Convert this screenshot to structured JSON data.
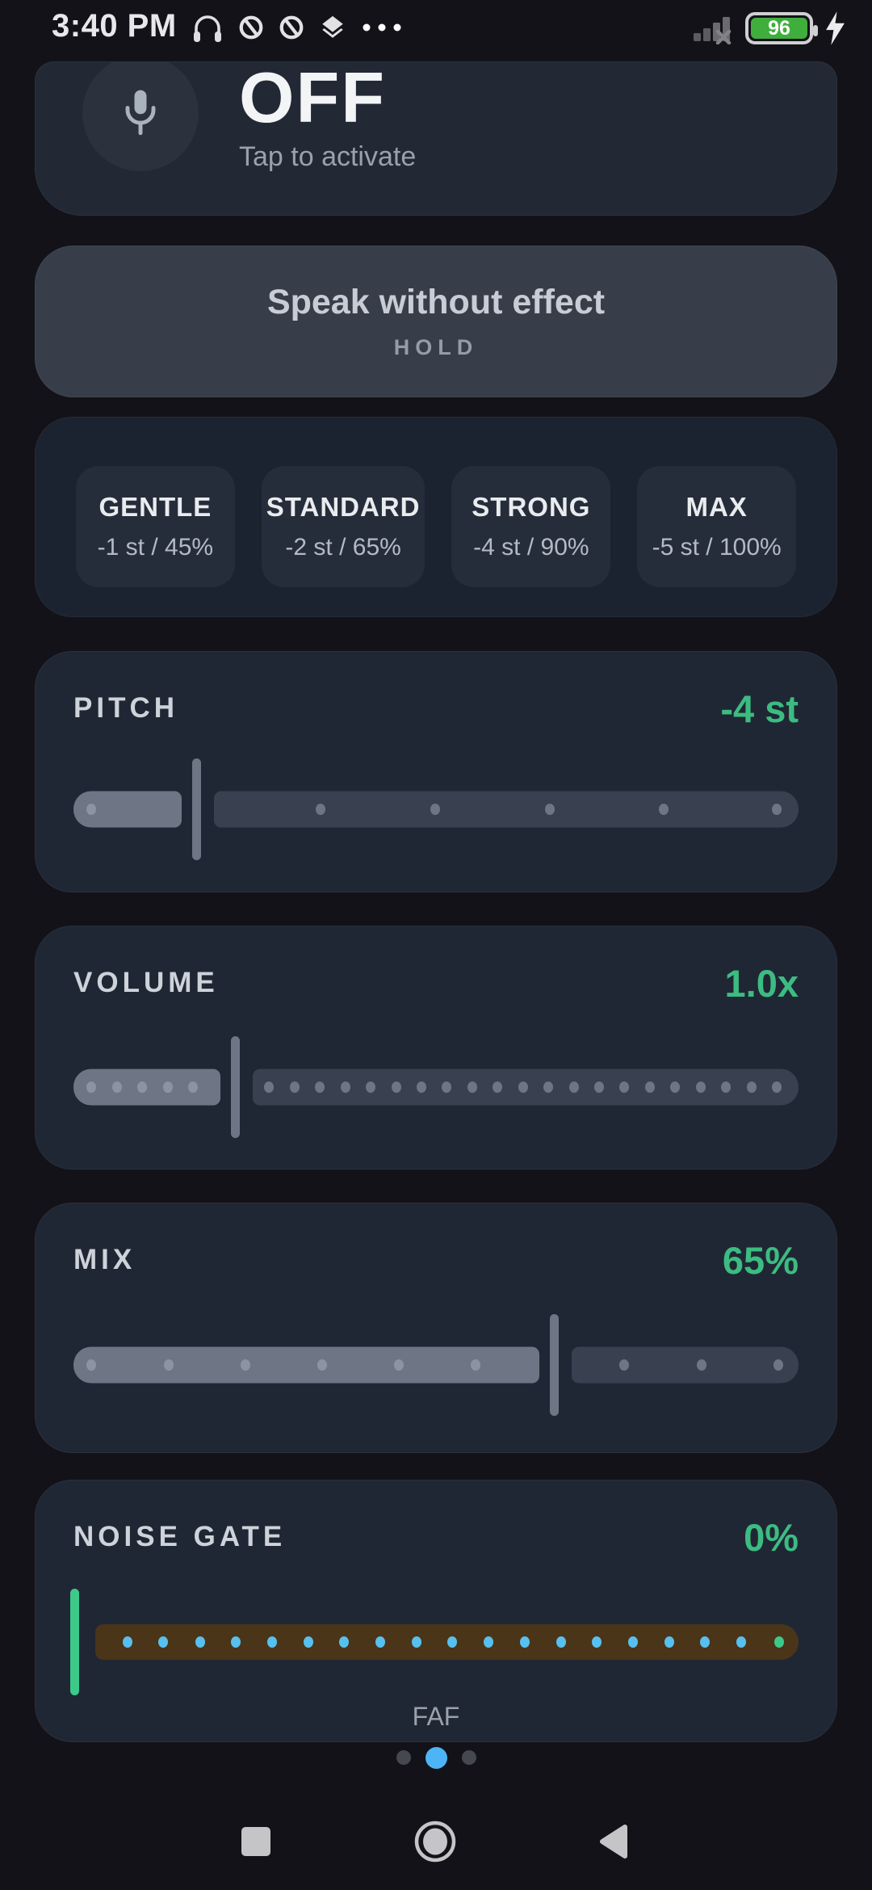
{
  "status_bar": {
    "time": "3:40 PM",
    "battery_percent": "96",
    "left_icons": [
      "headphones-icon",
      "do-not-disturb-icon",
      "do-not-disturb-icon",
      "layers-icon",
      "overflow-dots-icon"
    ],
    "right_icons": [
      "signal-off-icon",
      "battery-icon",
      "charging-bolt-icon"
    ]
  },
  "mic_card": {
    "state_label": "OFF",
    "hint": "Tap to activate"
  },
  "speak_button": {
    "label": "Speak without effect",
    "sub_label": "HOLD"
  },
  "presets": [
    {
      "name": "GENTLE",
      "detail": "-1 st / 45%"
    },
    {
      "name": "STANDARD",
      "detail": "-2 st / 65%"
    },
    {
      "name": "STRONG",
      "detail": "-4 st / 90%"
    },
    {
      "name": "MAX",
      "detail": "-5 st / 100%"
    }
  ],
  "sliders": [
    {
      "label": "PITCH",
      "value": "-4 st",
      "percent": 17,
      "dots": [
        2.5,
        34.1,
        49.9,
        65.7,
        81.4,
        97
      ]
    },
    {
      "label": "VOLUME",
      "value": "1.0x",
      "percent": 22.4,
      "dots": [
        2.5,
        6,
        9.5,
        13,
        16.5,
        27,
        30.5,
        34,
        37.5,
        41,
        44.5,
        48,
        51.5,
        55,
        58.5,
        62,
        65.5,
        69,
        72.5,
        76,
        79.5,
        83,
        86.5,
        90,
        93.5,
        97
      ]
    },
    {
      "label": "MIX",
      "value": "65%",
      "percent": 66.4,
      "dots": [
        2.5,
        13.1,
        23.7,
        34.3,
        44.9,
        55.5,
        75.9,
        86.6,
        97.2
      ]
    },
    {
      "label": "NOISE GATE",
      "value": "0%",
      "percent": 0,
      "type": "gate",
      "dots": [
        4.6,
        9.7,
        14.9,
        20.0,
        25.1,
        30.3,
        35.4,
        40.5,
        45.7,
        50.8,
        55.9,
        61.1,
        66.2,
        71.3,
        76.5,
        81.6,
        86.7,
        91.9
      ],
      "end_dot_percent": 97.2
    }
  ],
  "footer": {
    "preset_name": "FAF",
    "page_dots": {
      "count": 3,
      "active_index": 1
    }
  },
  "colors": {
    "accent_green": "#3cbc81",
    "slider_fill": "#6e7584",
    "slider_track": "#394050",
    "dot_on_fill": "#8d94a1",
    "dot_on_track": "#6e7584",
    "gate_track": "#4a3518",
    "gate_dot": "#58c0ee",
    "gate_end_dot": "#3dc98a",
    "page_dot_active": "#4db5f5",
    "battery_fill": "#3fae3c"
  }
}
